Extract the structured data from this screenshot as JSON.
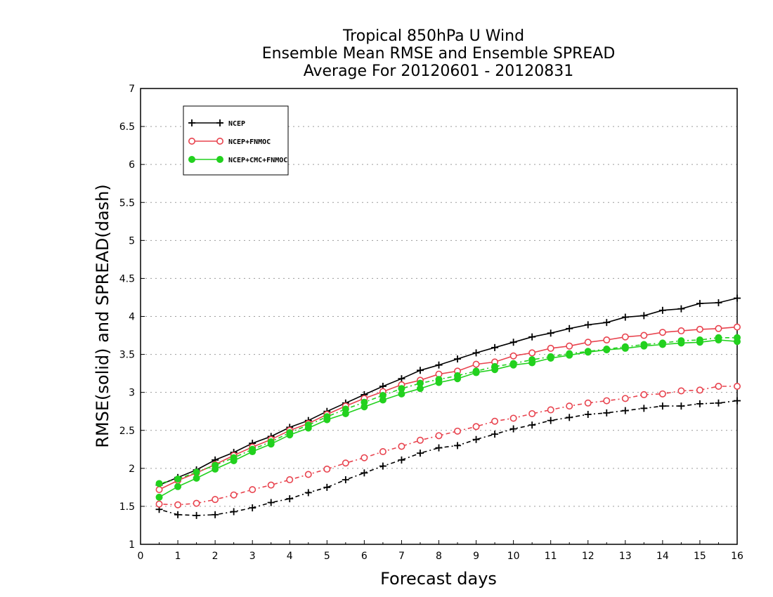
{
  "chart_data": {
    "type": "line",
    "title_lines": [
      "Tropical 850hPa U Wind",
      "Ensemble Mean RMSE and Ensemble SPREAD",
      "Average For 20120601 - 20120831"
    ],
    "xlabel": "Forecast days",
    "ylabel": "RMSE(solid) and SPREAD(dash)",
    "xlim": [
      0,
      16
    ],
    "ylim": [
      1,
      7
    ],
    "x_ticks": [
      0,
      1,
      2,
      3,
      4,
      5,
      6,
      7,
      8,
      9,
      10,
      11,
      12,
      13,
      14,
      15,
      16
    ],
    "y_ticks": [
      1,
      1.5,
      2,
      2.5,
      3,
      3.5,
      4,
      4.5,
      5,
      5.5,
      6,
      6.5,
      7
    ],
    "grid": "dotted horizontal",
    "legend_position": "top-left",
    "x": [
      0.5,
      1,
      1.5,
      2,
      2.5,
      3,
      3.5,
      4,
      4.5,
      5,
      5.5,
      6,
      6.5,
      7,
      7.5,
      8,
      8.5,
      9,
      9.5,
      10,
      10.5,
      11,
      11.5,
      12,
      12.5,
      13,
      13.5,
      14,
      14.5,
      15,
      15.5,
      16
    ],
    "series": [
      {
        "name": "NCEP",
        "color": "#000000",
        "marker": "plus",
        "rmse": [
          1.78,
          1.88,
          1.98,
          2.11,
          2.21,
          2.33,
          2.42,
          2.54,
          2.63,
          2.75,
          2.86,
          2.97,
          3.08,
          3.18,
          3.29,
          3.36,
          3.44,
          3.52,
          3.59,
          3.66,
          3.73,
          3.78,
          3.84,
          3.89,
          3.92,
          3.99,
          4.01,
          4.08,
          4.1,
          4.17,
          4.18,
          4.24
        ],
        "spread": [
          1.46,
          1.39,
          1.38,
          1.39,
          1.43,
          1.48,
          1.55,
          1.6,
          1.68,
          1.75,
          1.85,
          1.94,
          2.03,
          2.11,
          2.2,
          2.27,
          2.3,
          2.38,
          2.45,
          2.52,
          2.57,
          2.63,
          2.67,
          2.71,
          2.73,
          2.76,
          2.79,
          2.82,
          2.82,
          2.85,
          2.86,
          2.89
        ]
      },
      {
        "name": "NCEP+FNMOC",
        "color": "#e8434e",
        "marker": "open-circle",
        "rmse": [
          1.72,
          1.84,
          1.94,
          2.05,
          2.17,
          2.28,
          2.38,
          2.5,
          2.59,
          2.71,
          2.82,
          2.92,
          3.01,
          3.1,
          3.16,
          3.24,
          3.28,
          3.37,
          3.4,
          3.48,
          3.52,
          3.58,
          3.61,
          3.66,
          3.69,
          3.73,
          3.75,
          3.79,
          3.81,
          3.83,
          3.84,
          3.86
        ],
        "spread": [
          1.53,
          1.52,
          1.54,
          1.59,
          1.65,
          1.72,
          1.78,
          1.85,
          1.92,
          1.99,
          2.07,
          2.14,
          2.22,
          2.29,
          2.37,
          2.43,
          2.49,
          2.55,
          2.62,
          2.66,
          2.72,
          2.77,
          2.82,
          2.86,
          2.89,
          2.92,
          2.97,
          2.98,
          3.02,
          3.03,
          3.08,
          3.08
        ]
      },
      {
        "name": "NCEP+CMC+FNMOC",
        "color": "#22d11e",
        "marker": "filled-circle",
        "rmse": [
          1.62,
          1.76,
          1.87,
          1.99,
          2.1,
          2.22,
          2.32,
          2.44,
          2.53,
          2.64,
          2.72,
          2.81,
          2.9,
          2.98,
          3.05,
          3.13,
          3.18,
          3.26,
          3.3,
          3.36,
          3.39,
          3.45,
          3.49,
          3.53,
          3.56,
          3.58,
          3.61,
          3.63,
          3.65,
          3.66,
          3.69,
          3.67
        ],
        "spread": [
          1.8,
          1.86,
          1.95,
          2.04,
          2.14,
          2.25,
          2.35,
          2.47,
          2.57,
          2.68,
          2.78,
          2.87,
          2.96,
          3.05,
          3.12,
          3.17,
          3.22,
          3.28,
          3.34,
          3.38,
          3.43,
          3.47,
          3.51,
          3.54,
          3.57,
          3.6,
          3.63,
          3.65,
          3.68,
          3.69,
          3.72,
          3.72
        ]
      }
    ]
  }
}
